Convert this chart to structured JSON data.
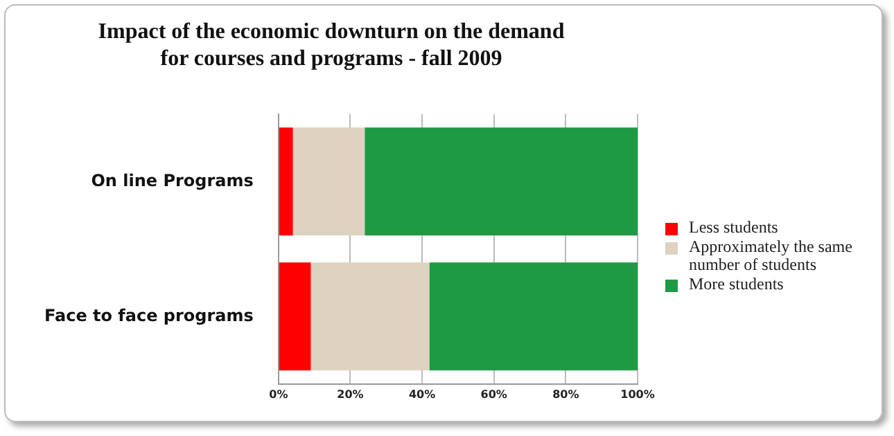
{
  "chart_data": {
    "type": "bar",
    "orientation": "horizontal",
    "stacked": true,
    "title": "Impact of the economic downturn on the demand\nfor courses and programs - fall 2009",
    "categories": [
      "On line Programs",
      "Face to face programs"
    ],
    "series": [
      {
        "name": "Less students",
        "color": "#ff0000",
        "values": [
          4,
          9
        ]
      },
      {
        "name": "Approximately the same number of students",
        "color": "#ddd3c0",
        "values": [
          20,
          33
        ]
      },
      {
        "name": "More students",
        "color": "#1e9a44",
        "values": [
          76,
          58
        ]
      }
    ],
    "xlim": [
      0,
      100
    ],
    "xticks": [
      {
        "value": 0,
        "label": "0%"
      },
      {
        "value": 20,
        "label": "20%"
      },
      {
        "value": 40,
        "label": "40%"
      },
      {
        "value": 60,
        "label": "60%"
      },
      {
        "value": 80,
        "label": "80%"
      },
      {
        "value": 100,
        "label": "100%"
      }
    ],
    "grid": "x",
    "legend": "right"
  }
}
